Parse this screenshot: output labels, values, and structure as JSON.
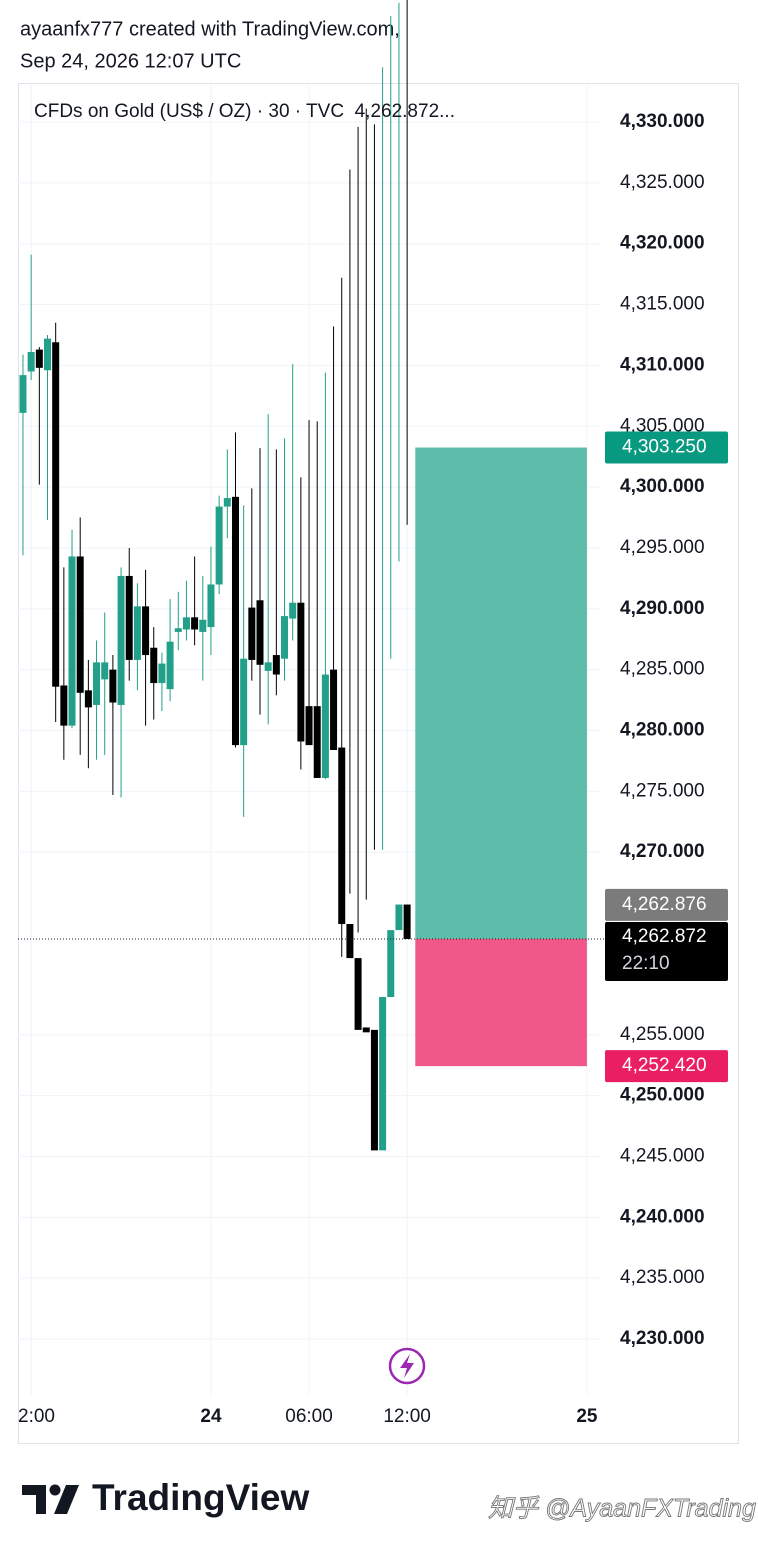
{
  "header": {
    "line1": "ayaanfx777 created with TradingView.com,",
    "line2": "Sep 24, 2026 12:07 UTC"
  },
  "chart_data": {
    "type": "candlestick",
    "title": "CFDs on Gold (US$ / OZ) · 30 · TVC  4,262.872...",
    "up_color": "#22a08a",
    "down_color": "#000000",
    "ohlc": {
      "open": [
        4306.1,
        4309.5,
        4311.3,
        4309.6,
        4311.9,
        4283.7,
        4280.4,
        4294.3,
        4283.3,
        4282.1,
        4284.2,
        4285.0,
        4282.1,
        4292.7,
        4285.8,
        4290.2,
        4286.8,
        4283.9,
        4283.4,
        4288.1,
        4288.3,
        4289.3,
        4288.1,
        4288.5,
        4292.0,
        4298.4,
        4299.2,
        4278.8,
        4290.1,
        4290.7,
        4284.9,
        4286.2,
        4285.9,
        4289.2,
        4290.5,
        4282.0,
        4282.0,
        4276.1,
        4285.0,
        4278.6,
        4264.1,
        4261.3,
        4255.6,
        4255.4,
        4245.5,
        4258.1,
        4263.6,
        4265.7
      ],
      "high": [
        4310.9,
        4319.1,
        4311.5,
        4312.5,
        4313.5,
        4293.4,
        4296.5,
        4297.5,
        4285.8,
        4287.4,
        4289.7,
        4286.2,
        4293.4,
        4295.0,
        4292.1,
        4293.2,
        4288.5,
        4286.4,
        4290.8,
        4291.4,
        4292.3,
        4294.3,
        4292.7,
        4295.1,
        4299.3,
        4303.1,
        4304.5,
        4298.5,
        4299.9,
        4303.2,
        4306.0,
        4303.1,
        4304.0,
        4310.1,
        4300.8,
        4305.5,
        4305.4,
        4309.4,
        4313.2,
        4317.2,
        4326.1,
        4329.6,
        4331.1,
        4329.8,
        4334.5,
        4338.7,
        4339.8,
        4341.7
      ],
      "low": [
        4294.4,
        4308.8,
        4300.2,
        4297.3,
        4280.7,
        4277.6,
        4280.2,
        4278.0,
        4276.9,
        4277.6,
        4278.0,
        4274.7,
        4274.5,
        4284.1,
        4283.3,
        4280.4,
        4280.9,
        4281.6,
        4282.4,
        4286.6,
        4287.4,
        4287.0,
        4284.1,
        4286.2,
        4291.2,
        4295.8,
        4278.6,
        4272.9,
        4284.1,
        4281.3,
        4280.5,
        4282.9,
        4284.1,
        4287.4,
        4276.8,
        4281.4,
        4277.1,
        4276.0,
        4278.4,
        4261.4,
        4266.6,
        4263.4,
        4266.1,
        4270.2,
        4270.2,
        4285.9,
        4293.9,
        4296.9
      ],
      "close": [
        4309.2,
        4311.1,
        4309.8,
        4312.2,
        4283.6,
        4280.4,
        4294.3,
        4283.1,
        4281.9,
        4285.6,
        4285.6,
        4282.3,
        4292.7,
        4285.8,
        4290.2,
        4286.2,
        4283.9,
        4285.5,
        4287.3,
        4288.4,
        4289.3,
        4288.3,
        4289.1,
        4292.0,
        4298.4,
        4299.1,
        4278.8,
        4285.9,
        4285.8,
        4285.4,
        4285.6,
        4284.6,
        4289.4,
        4290.5,
        4279.1,
        4278.8,
        4276.1,
        4284.6,
        4278.4,
        4264.1,
        4261.3,
        4255.4,
        4255.2,
        4245.5,
        4258.1,
        4263.6,
        4265.7,
        4262.872
      ]
    },
    "xlim": [
      -0.61,
      70.6
    ],
    "xticks": [
      {
        "value": 1,
        "label": "2:00"
      },
      {
        "value": 23,
        "label": "24"
      },
      {
        "value": 35,
        "label": "06:00"
      },
      {
        "value": 47,
        "label": "12:00"
      },
      {
        "value": 69,
        "label": "25"
      }
    ],
    "ylim": [
      4225.4,
      4333.04
    ],
    "yticks": [
      {
        "value": 4230,
        "label": "4,230.000"
      },
      {
        "value": 4235,
        "label": "4,235.000"
      },
      {
        "value": 4240,
        "label": "4,240.000"
      },
      {
        "value": 4245,
        "label": "4,245.000"
      },
      {
        "value": 4250,
        "label": "4,250.000"
      },
      {
        "value": 4255,
        "label": "4,255.000"
      },
      {
        "value": 4270,
        "label": "4,270.000"
      },
      {
        "value": 4275,
        "label": "4,275.000"
      },
      {
        "value": 4280,
        "label": "4,280.000"
      },
      {
        "value": 4285,
        "label": "4,285.000"
      },
      {
        "value": 4290,
        "label": "4,290.000"
      },
      {
        "value": 4295,
        "label": "4,295.000"
      },
      {
        "value": 4300,
        "label": "4,300.000"
      },
      {
        "value": 4305,
        "label": "4,305.000"
      },
      {
        "value": 4310,
        "label": "4,310.000"
      },
      {
        "value": 4315,
        "label": "4,315.000"
      },
      {
        "value": 4320,
        "label": "4,320.000"
      },
      {
        "value": 4325,
        "label": "4,325.000"
      },
      {
        "value": 4330,
        "label": "4,330.000"
      }
    ],
    "grid": true,
    "position": {
      "entry": 4262.876,
      "target": 4303.25,
      "stop": 4252.42,
      "start_index": 48,
      "end_index": 69,
      "target_color": "#5dbcaa",
      "stop_color": "#f0588a"
    },
    "price_labels": [
      {
        "value": 4303.25,
        "label": "4,303.250",
        "color": "#089981"
      },
      {
        "value": 4262.876,
        "label": "4,262.876",
        "color": "#7b7b7b"
      },
      {
        "value": 4262.872,
        "label": "4,262.872",
        "countdown": "22:10",
        "color": "#000000"
      },
      {
        "value": 4252.42,
        "label": "4,252.420",
        "color": "#e91e63"
      }
    ]
  },
  "footer": {
    "brand": "TradingView",
    "watermark": "知乎 @AyaanFXTrading"
  }
}
